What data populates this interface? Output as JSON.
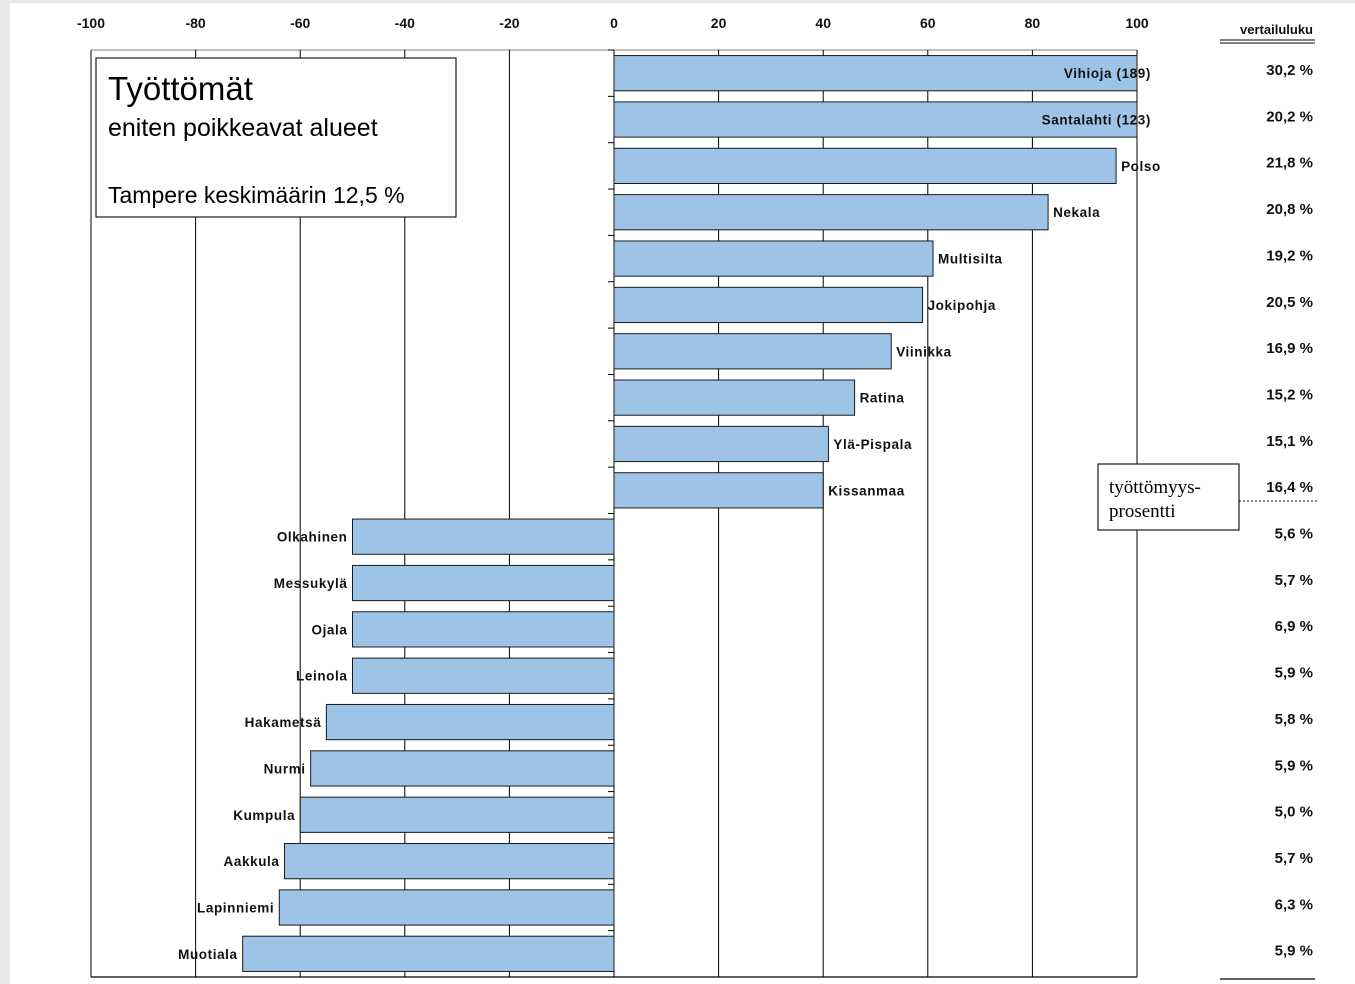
{
  "chart_data": {
    "type": "bar",
    "orientation": "horizontal",
    "title": "Työttömät",
    "subtitle": "eniten poikkeavat alueet",
    "note": "Tampere keskimäärin 12,5 %",
    "xlim": [
      -100,
      100
    ],
    "x_ticks": [
      "-100",
      "-80",
      "-60",
      "-40",
      "-20",
      "0",
      "20",
      "40",
      "60",
      "80",
      "100"
    ],
    "grid": true,
    "categories": [
      "Vihioja (189)",
      "Santalahti (123)",
      "Polso",
      "Nekala",
      "Multisilta",
      "Jokipohja",
      "Viinikka",
      "Ratina",
      "Ylä-Pispala",
      "Kissanmaa",
      "Olkahinen",
      "Messukylä",
      "Ojala",
      "Leinola",
      "Hakametsä",
      "Nurmi",
      "Kumpula",
      "Aakkula",
      "Lapinniemi",
      "Muotiala"
    ],
    "values": [
      100,
      100,
      96,
      83,
      61,
      59,
      53,
      46,
      41,
      40,
      -50,
      -50,
      -50,
      -50,
      -55,
      -58,
      -60,
      -63,
      -64,
      -71
    ],
    "side_column": {
      "header": "vertailuluku",
      "values": [
        "30,2 %",
        "20,2 %",
        "21,8 %",
        "20,8 %",
        "19,2 %",
        "20,5 %",
        "16,9 %",
        "15,2 %",
        "15,1 %",
        "16,4 %",
        "5,6 %",
        "5,7 %",
        "6,9 %",
        "5,9 %",
        "5,8 %",
        "5,9 %",
        "5,0 %",
        "5,7 %",
        "6,3 %",
        "5,9 %"
      ]
    },
    "annotation_line1": "työttömyys-",
    "annotation_line2": "prosentti",
    "colors": {
      "bar": "#9dc3e6",
      "bar_stroke": "#1a1a1a",
      "grid": "#000000"
    }
  }
}
